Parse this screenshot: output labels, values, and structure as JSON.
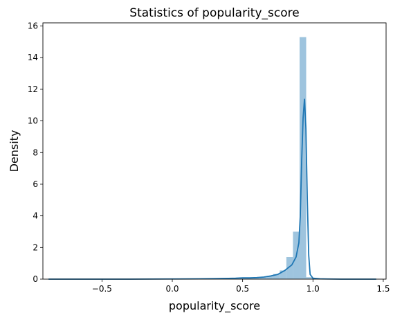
{
  "chart_data": {
    "type": "histogram+kde",
    "title": "Statistics of popularity_score",
    "xlabel": "popularity_score",
    "ylabel": "Density",
    "xlim": [
      -0.92,
      1.52
    ],
    "ylim": [
      0,
      16.2
    ],
    "xticks": [
      -0.5,
      0.0,
      0.5,
      1.0,
      1.5
    ],
    "xtick_labels": [
      "−0.5",
      "0.0",
      "0.5",
      "1.0",
      "1.5"
    ],
    "yticks": [
      0,
      2,
      4,
      6,
      8,
      10,
      12,
      14,
      16
    ],
    "ytick_labels": [
      "0",
      "2",
      "4",
      "6",
      "8",
      "10",
      "12",
      "14",
      "16"
    ],
    "grid": false,
    "colors": {
      "bars": "#9ec4de",
      "kde": "#1f77b4"
    },
    "histogram": {
      "bin_width": 0.047,
      "bins": [
        {
          "x0": 0.435,
          "density": 0.03
        },
        {
          "x0": 0.482,
          "density": 0.05
        },
        {
          "x0": 0.529,
          "density": 0.05
        },
        {
          "x0": 0.576,
          "density": 0.08
        },
        {
          "x0": 0.623,
          "density": 0.12
        },
        {
          "x0": 0.67,
          "density": 0.2
        },
        {
          "x0": 0.717,
          "density": 0.32
        },
        {
          "x0": 0.764,
          "density": 0.55
        },
        {
          "x0": 0.811,
          "density": 1.4
        },
        {
          "x0": 0.858,
          "density": 3.0
        },
        {
          "x0": 0.905,
          "density": 15.3
        },
        {
          "x0": 0.952,
          "density": 0.12
        }
      ]
    },
    "kde": {
      "x": [
        -0.88,
        -0.6,
        -0.3,
        0.0,
        0.2,
        0.3,
        0.4,
        0.45,
        0.5,
        0.55,
        0.6,
        0.65,
        0.7,
        0.75,
        0.8,
        0.85,
        0.88,
        0.9,
        0.91,
        0.92,
        0.93,
        0.94,
        0.95,
        0.96,
        0.97,
        0.98,
        1.0,
        1.05,
        1.1,
        1.2,
        1.3,
        1.45
      ],
      "y": [
        0.0,
        0.0,
        0.0,
        0.01,
        0.02,
        0.03,
        0.05,
        0.06,
        0.08,
        0.08,
        0.1,
        0.13,
        0.2,
        0.3,
        0.55,
        0.9,
        1.4,
        2.3,
        4.0,
        7.5,
        10.2,
        11.4,
        9.5,
        5.0,
        1.5,
        0.3,
        0.06,
        0.02,
        0.01,
        0.0,
        0.0,
        0.0
      ]
    }
  }
}
